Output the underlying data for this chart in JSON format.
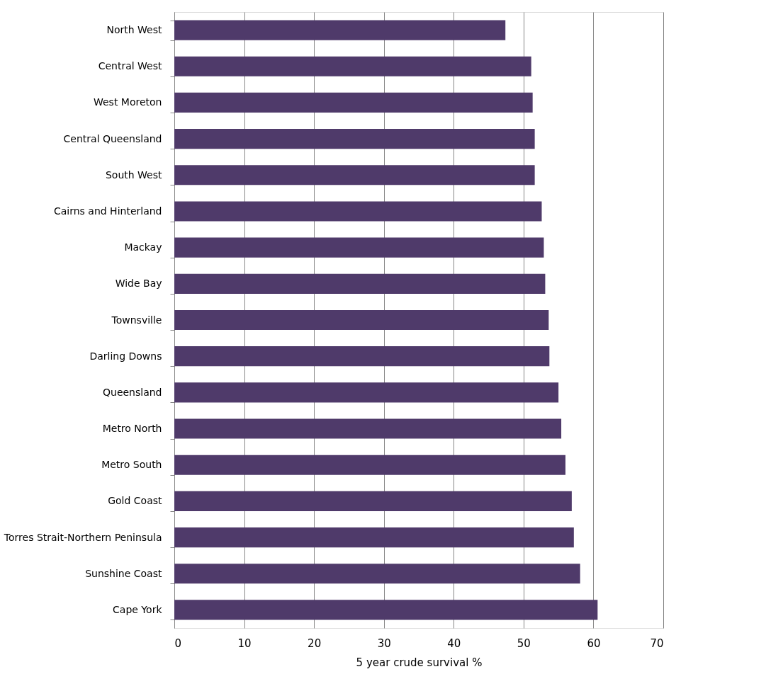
{
  "chart_data": {
    "type": "bar",
    "orientation": "horizontal",
    "xlabel": "5 year crude survival %",
    "categories": [
      "North West",
      "Central West",
      "West Moreton",
      "Central Queensland",
      "South West",
      "Cairns and Hinterland",
      "Mackay",
      "Wide Bay",
      "Townsville",
      "Darling Downs",
      "Queensland",
      "Metro North",
      "Metro South",
      "Gold Coast",
      "Torres Strait-Northern Peninsula",
      "Sunshine Coast",
      "Cape York"
    ],
    "values": [
      47.4,
      51.1,
      51.3,
      51.6,
      51.6,
      52.6,
      52.9,
      53.1,
      53.6,
      53.7,
      55.0,
      55.4,
      56.0,
      56.9,
      57.2,
      58.1,
      60.6
    ],
    "color": "#4f3a6a",
    "xlim": [
      0,
      70
    ],
    "xticks": [
      0,
      10,
      20,
      30,
      40,
      50,
      60,
      70
    ],
    "grid": "x"
  }
}
